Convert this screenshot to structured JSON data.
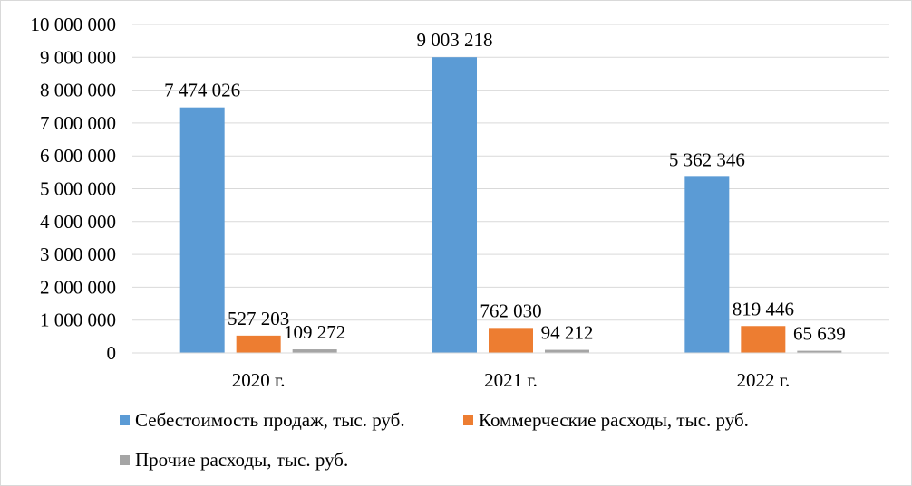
{
  "colors": {
    "series_1": "#5b9bd5",
    "series_2": "#ed7d31",
    "series_3": "#a5a5a5",
    "gridline": "#d9d9d9",
    "axis": "#d9d9d9"
  },
  "chart_data": {
    "type": "bar",
    "categories": [
      "2020 г.",
      "2021 г.",
      "2022 г."
    ],
    "series": [
      {
        "name": "Себестоимость продаж, тыс. руб.",
        "values": [
          7474026,
          9003218,
          5362346
        ],
        "labels": [
          "7 474 026",
          "9 003 218",
          "5 362 346"
        ]
      },
      {
        "name": "Коммерческие расходы, тыс. руб.",
        "values": [
          527203,
          762030,
          819446
        ],
        "labels": [
          "527 203",
          "762 030",
          "819 446"
        ]
      },
      {
        "name": "Прочие расходы, тыс. руб.",
        "values": [
          109272,
          94212,
          65639
        ],
        "labels": [
          "109 272",
          "94 212",
          "65 639"
        ]
      }
    ],
    "ylim": [
      0,
      10000000
    ],
    "yticks": [
      0,
      1000000,
      2000000,
      3000000,
      4000000,
      5000000,
      6000000,
      7000000,
      8000000,
      9000000,
      10000000
    ],
    "ytick_labels": [
      "0",
      "1 000 000",
      "2 000 000",
      "3 000 000",
      "4 000 000",
      "5 000 000",
      "6 000 000",
      "7 000 000",
      "8 000 000",
      "9 000 000",
      "10 000 000"
    ],
    "grid": true,
    "legend_position": "bottom"
  }
}
